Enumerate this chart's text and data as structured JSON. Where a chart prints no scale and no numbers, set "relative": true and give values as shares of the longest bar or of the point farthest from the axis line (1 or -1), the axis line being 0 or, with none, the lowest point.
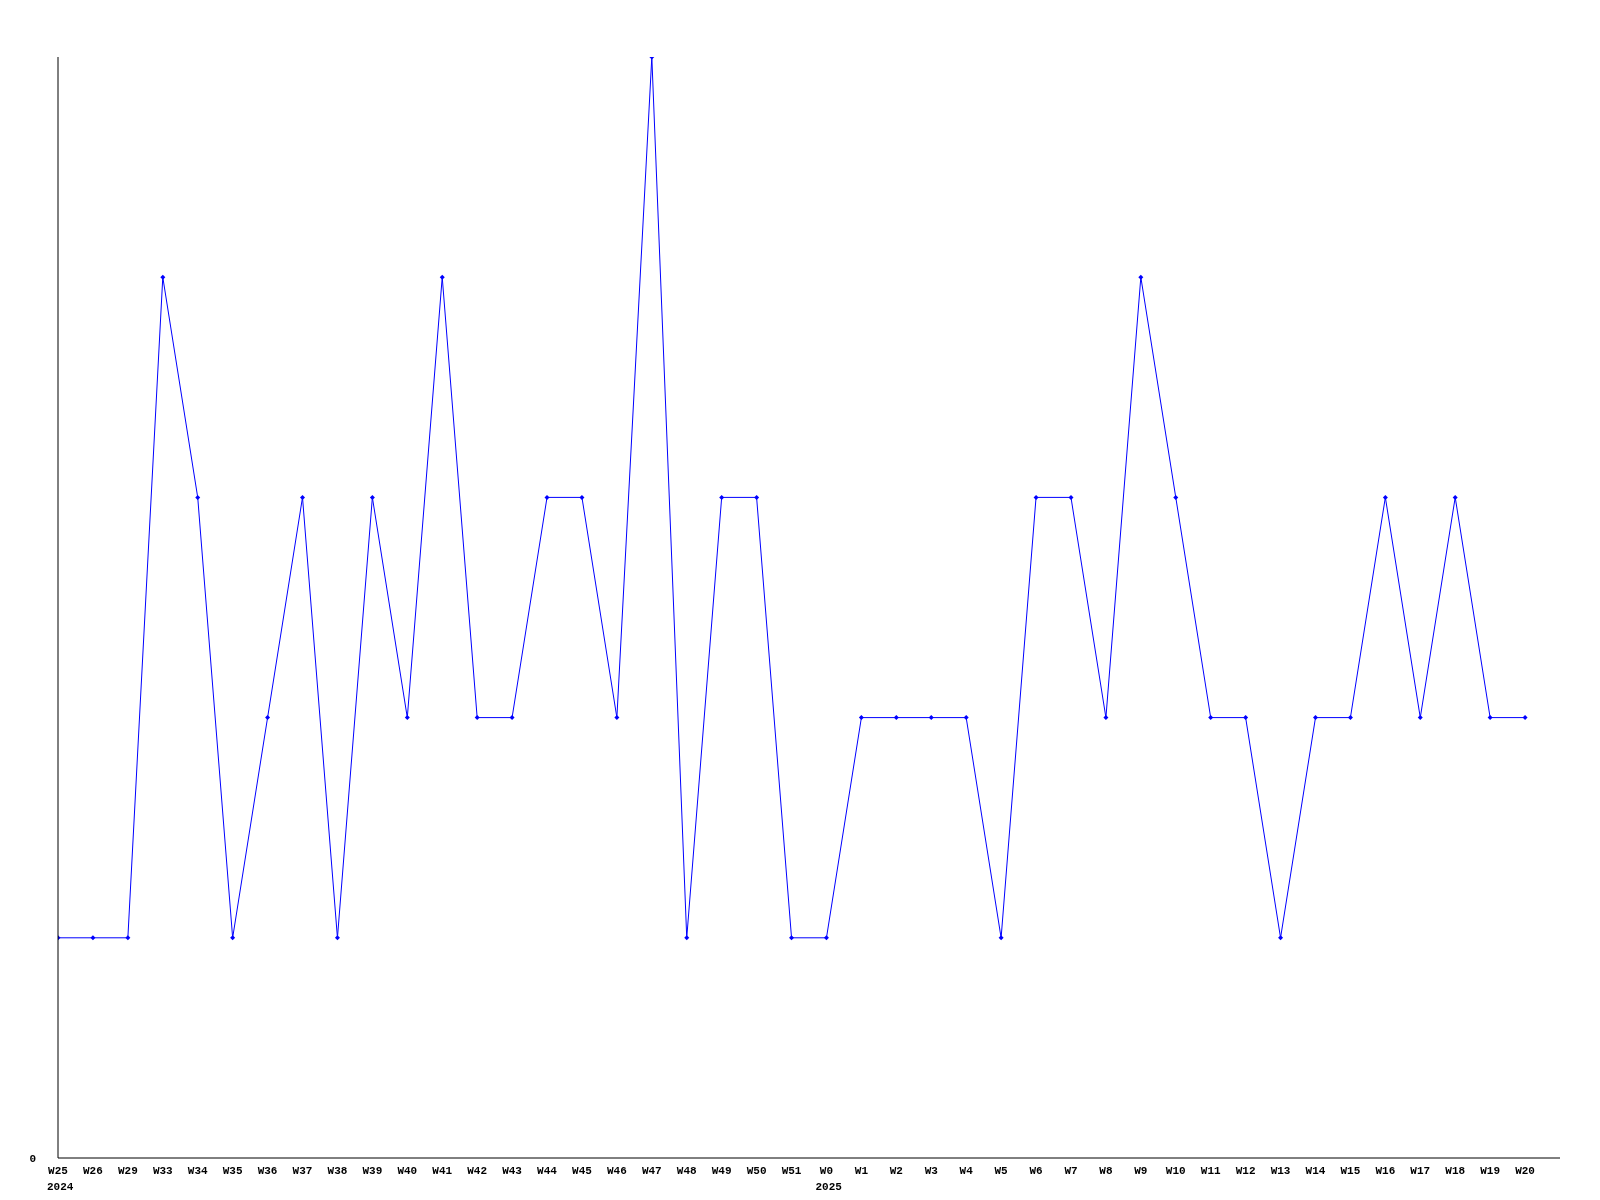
{
  "chart_data": {
    "type": "line",
    "relative": true,
    "color": "#0000ff",
    "marker": "diamond",
    "categories": [
      "W25",
      "W26",
      "W29",
      "W33",
      "W34",
      "W35",
      "W36",
      "W37",
      "W38",
      "W39",
      "W40",
      "W41",
      "W42",
      "W43",
      "W44",
      "W45",
      "W46",
      "W47",
      "W48",
      "W49",
      "W50",
      "W51",
      "W0",
      "W1",
      "W2",
      "W3",
      "W4",
      "W5",
      "W6",
      "W7",
      "W8",
      "W9",
      "W10",
      "W11",
      "W12",
      "W13",
      "W14",
      "W15",
      "W16",
      "W17",
      "W18",
      "W19",
      "W20"
    ],
    "values": [
      0.2,
      0.2,
      0.2,
      0.8,
      0.6,
      0.2,
      0.4,
      0.6,
      0.2,
      0.6,
      0.4,
      0.8,
      0.4,
      0.4,
      0.6,
      0.6,
      0.4,
      1,
      0.2,
      0.6,
      0.6,
      0.2,
      0.2,
      0.4,
      0.4,
      0.4,
      0.4,
      0.2,
      0.6,
      0.6,
      0.4,
      0.8,
      0.6,
      0.4,
      0.4,
      0.2,
      0.4,
      0.4,
      0.6,
      0.4,
      0.6,
      0.4,
      0.4
    ],
    "annotations": [
      "0",
      "2024",
      "2025"
    ]
  }
}
